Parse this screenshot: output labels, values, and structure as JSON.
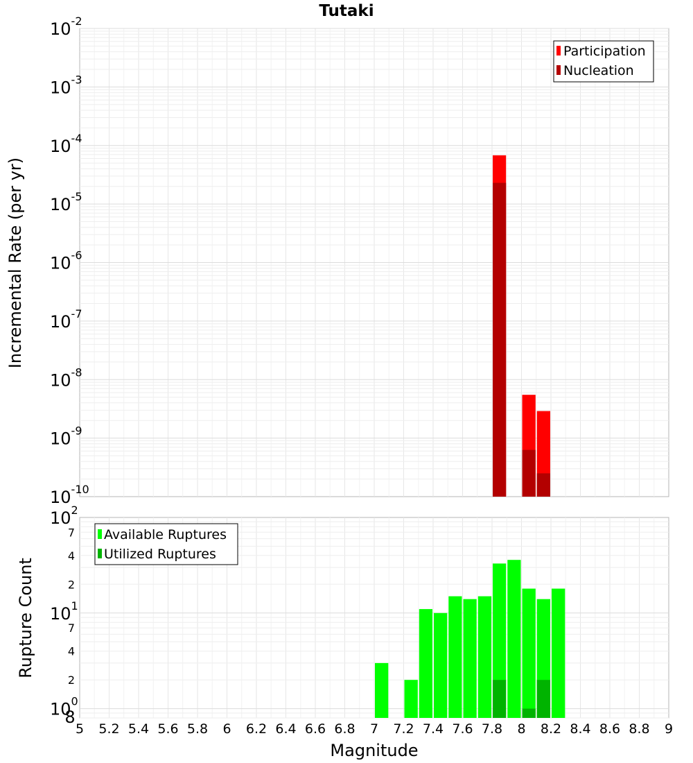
{
  "chart_data": [
    {
      "type": "bar",
      "title": "Tutaki",
      "xlabel": "",
      "ylabel": "Incremental Rate (per yr)",
      "y_scale": "log",
      "ylim": [
        1e-10,
        0.01
      ],
      "xlim": [
        5,
        9
      ],
      "y_tick_exponents": [
        "-2",
        "-3",
        "-4",
        "-5",
        "-6",
        "-7",
        "-8",
        "-9",
        "-10"
      ],
      "y_tick_base": "10",
      "legend": {
        "placement": "top-right"
      },
      "bar_width": 0.1,
      "x": [
        7.85,
        8.05,
        8.15
      ],
      "series": [
        {
          "name": "Participation",
          "color": "#ff0000",
          "values": [
            6.8e-05,
            5.5e-09,
            2.9e-09
          ]
        },
        {
          "name": "Nucleation",
          "color": "#b30000",
          "values": [
            2.3e-05,
            6.3e-10,
            2.5e-10
          ]
        }
      ],
      "grid": true
    },
    {
      "type": "bar",
      "title": "",
      "xlabel": "Magnitude",
      "ylabel": "Rupture Count",
      "y_scale": "log",
      "ylim": [
        0.8,
        100
      ],
      "xlim": [
        5,
        9
      ],
      "x_ticks": [
        "5",
        "5.2",
        "5.4",
        "5.6",
        "5.8",
        "6",
        "6.2",
        "6.4",
        "6.6",
        "6.8",
        "7",
        "7.2",
        "7.4",
        "7.6",
        "7.8",
        "8",
        "8.2",
        "8.4",
        "8.6",
        "8.8",
        "9"
      ],
      "y_major_ticks": [
        {
          "value": 100,
          "base": "10",
          "exp": "2"
        },
        {
          "value": 10,
          "base": "10",
          "exp": "1"
        },
        {
          "value": 1,
          "base": "10",
          "exp": "0"
        }
      ],
      "y_minor_ticks": [
        {
          "value": 70,
          "label": "7"
        },
        {
          "value": 40,
          "label": "4"
        },
        {
          "value": 20,
          "label": "2"
        },
        {
          "value": 7,
          "label": "7"
        },
        {
          "value": 4,
          "label": "4"
        },
        {
          "value": 2,
          "label": "2"
        },
        {
          "value": 0.8,
          "label": "8"
        }
      ],
      "legend": {
        "placement": "top-left"
      },
      "bar_width": 0.1,
      "x": [
        7.05,
        7.25,
        7.35,
        7.45,
        7.55,
        7.65,
        7.75,
        7.85,
        7.95,
        8.05,
        8.15,
        8.25
      ],
      "series": [
        {
          "name": "Available Ruptures",
          "color": "#00ff00",
          "values": [
            3,
            2,
            11,
            10,
            15,
            14,
            15,
            33,
            36,
            18,
            14,
            18
          ]
        },
        {
          "name": "Utilized Ruptures",
          "color": "#00b300",
          "values": [
            null,
            null,
            null,
            null,
            null,
            null,
            null,
            2,
            null,
            1,
            2,
            null
          ]
        }
      ],
      "grid": true
    }
  ]
}
